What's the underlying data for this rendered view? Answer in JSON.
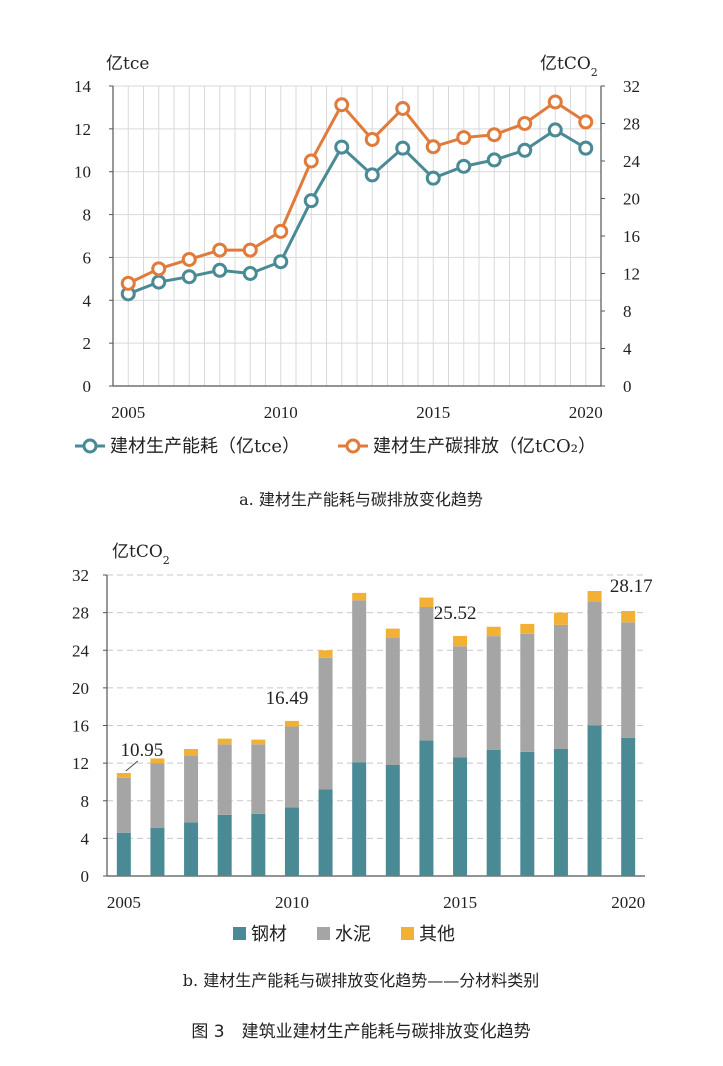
{
  "chart_data": [
    {
      "type": "line",
      "x": [
        2005,
        2006,
        2007,
        2008,
        2009,
        2010,
        2011,
        2012,
        2013,
        2014,
        2015,
        2016,
        2017,
        2018,
        2019,
        2020
      ],
      "series": [
        {
          "name": "建材生产能耗（亿tce）",
          "axis": "left",
          "values": [
            4.3,
            4.85,
            5.1,
            5.4,
            5.25,
            5.8,
            8.65,
            11.15,
            9.85,
            11.1,
            9.7,
            10.25,
            10.55,
            11.0,
            11.95,
            11.1
          ]
        },
        {
          "name": "建材生产碳排放（亿tCO₂）",
          "axis": "right",
          "values": [
            10.95,
            12.5,
            13.5,
            14.5,
            14.5,
            16.49,
            24.0,
            30.0,
            26.3,
            29.6,
            25.52,
            26.5,
            26.8,
            28.0,
            30.3,
            28.17
          ]
        }
      ],
      "ylabel_left": "亿tce",
      "ylim_left": [
        0,
        14
      ],
      "yticks_left": [
        0,
        2,
        4,
        6,
        8,
        10,
        12,
        14
      ],
      "ylabel_right": "亿tCO₂",
      "ylim_right": [
        0,
        32
      ],
      "yticks_right": [
        0,
        4,
        8,
        12,
        16,
        20,
        24,
        28,
        32
      ],
      "xticks": [
        2005,
        2010,
        2015,
        2020
      ],
      "grid": true,
      "legend": "bottom",
      "colors": {
        "energy": "#4a8a94",
        "carbon": "#e07b3c"
      },
      "caption": "a. 建材生产能耗与碳排放变化趋势"
    },
    {
      "type": "bar",
      "stacked": true,
      "categories": [
        2005,
        2006,
        2007,
        2008,
        2009,
        2010,
        2011,
        2012,
        2013,
        2014,
        2015,
        2016,
        2017,
        2018,
        2019,
        2020
      ],
      "series": [
        {
          "name": "钢材",
          "values": [
            4.6,
            5.1,
            5.7,
            6.5,
            6.6,
            7.3,
            9.2,
            12.1,
            11.8,
            14.4,
            12.6,
            13.4,
            13.2,
            13.5,
            16.0,
            14.7
          ]
        },
        {
          "name": "水泥",
          "values": [
            5.85,
            6.9,
            7.1,
            7.5,
            7.4,
            8.59,
            14.0,
            17.2,
            13.5,
            14.2,
            11.82,
            12.1,
            12.55,
            13.2,
            13.2,
            12.27
          ]
        },
        {
          "name": "其他",
          "values": [
            0.5,
            0.5,
            0.7,
            0.6,
            0.5,
            0.6,
            0.8,
            0.8,
            1.0,
            1.0,
            1.1,
            1.0,
            1.05,
            1.3,
            1.1,
            1.2
          ]
        }
      ],
      "totals_labels": [
        {
          "year": 2005,
          "text": "10.95"
        },
        {
          "year": 2010,
          "text": "16.49"
        },
        {
          "year": 2015,
          "text": "25.52"
        },
        {
          "year": 2020,
          "text": "28.17"
        }
      ],
      "ylabel": "亿tCO₂",
      "ylim": [
        0,
        32
      ],
      "yticks": [
        0,
        4,
        8,
        12,
        16,
        20,
        24,
        28,
        32
      ],
      "xticks": [
        2005,
        2010,
        2015,
        2020
      ],
      "grid": true,
      "legend": "bottom",
      "colors": {
        "steel": "#4a8a94",
        "cement": "#a5a5a5",
        "other": "#f2b134"
      },
      "caption": "b. 建材生产能耗与碳排放变化趋势——分材料类别"
    }
  ],
  "figure_caption": "图 3　建筑业建材生产能耗与碳排放变化趋势"
}
